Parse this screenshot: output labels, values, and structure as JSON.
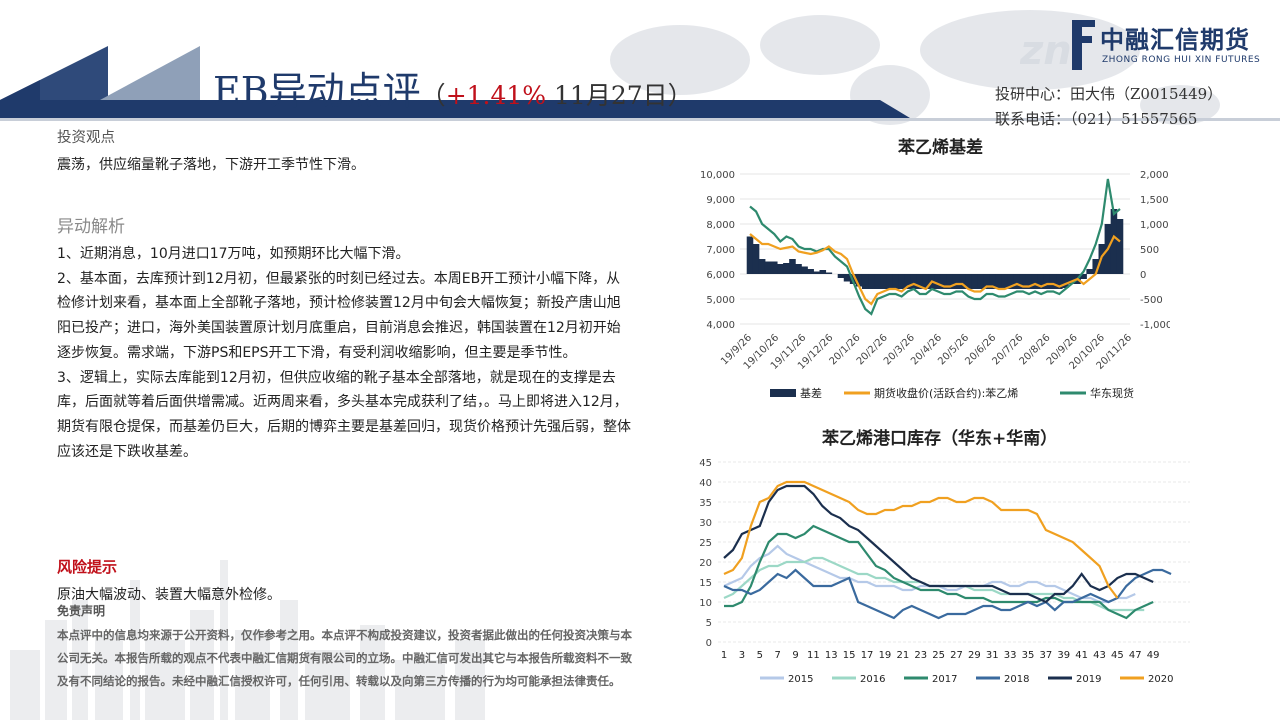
{
  "header": {
    "title": "EB异动点评",
    "subtitle_open": "（",
    "subtitle_pct": "+1.41%",
    "subtitle_date": " 11月27日）",
    "logo_cn": "中融汇信期货",
    "logo_en": "ZHONG RONG HUI XIN FUTURES",
    "contact_line1": "投研中心：田大伟（Z0015449）",
    "contact_line2": "联系电话：（021）51557565"
  },
  "view": {
    "heading": "投资观点",
    "text": "震荡，供应缩量靴子落地，下游开工季节性下滑。"
  },
  "analysis": {
    "heading": "异动解析",
    "p1": "1、近期消息，10月进口17万吨，如预期环比大幅下滑。",
    "p2": "2、基本面，去库预计到12月初，但最紧张的时刻已经过去。本周EB开工预计小幅下降，从检修计划来看，基本面上全部靴子落地，预计检修装置12月中旬会大幅恢复；新投产唐山旭阳已投产；进口，海外美国装置原计划月底重启，目前消息会推迟，韩国装置在12月初开始逐步恢复。需求端，下游PS和EPS开工下滑，有受利润收缩影响，但主要是季节性。",
    "p3": "3、逻辑上，实际去库能到12月初，但供应收缩的靴子基本全部落地，就是现在的支撑是去库，后面就等着后面供增需减。近两周来看，多头基本完成获利了结，。马上即将进入12月，期货有限仓提保，而基差仍巨大，后期的博弈主要是基差回归，现货价格预计先强后弱，整体应该还是下跌收基差。"
  },
  "risk": {
    "heading": "风险提示",
    "text": "原油大幅波动、装置大幅意外检修。"
  },
  "disclaimer": {
    "heading": "免责声明",
    "text": "本点评中的信息均来源于公开资料，仅作参考之用。本点评不构成投资建议，投资者据此做出的任何投资决策与本公司无关。本报告所载的观点不代表中融汇信期货有限公司的立场。中融汇信可发出其它与本报告所载资料不一致及有不同结论的报告。未经中融汇信授权许可，任何引用、转载以及向第三方传播的行为均可能承担法律责任。"
  },
  "chart_data": [
    {
      "type": "line",
      "title": "苯乙烯基差",
      "x_ticks": [
        "19/9/26",
        "19/10/26",
        "19/11/26",
        "19/12/26",
        "20/1/26",
        "20/2/26",
        "20/3/26",
        "20/4/26",
        "20/5/26",
        "20/6/26",
        "20/7/26",
        "20/8/26",
        "20/9/26",
        "20/10/26",
        "20/11/26"
      ],
      "y_left_ticks": [
        "10,000",
        "9,000",
        "8,000",
        "7,000",
        "6,000",
        "5,000",
        "4,000"
      ],
      "y_left_lim": [
        4000,
        10000
      ],
      "y_right_ticks": [
        "2,000",
        "1,500",
        "1,000",
        "500",
        "0",
        "-500",
        "-1,000"
      ],
      "y_right_lim": [
        -1000,
        2000
      ],
      "legend_position": "bottom",
      "series": [
        {
          "name": "基差",
          "axis": "right",
          "render": "bar",
          "color": "#1b2f4e",
          "values": [
            750,
            600,
            300,
            250,
            250,
            200,
            220,
            300,
            200,
            150,
            100,
            50,
            80,
            30,
            0,
            -80,
            -150,
            -200,
            -250,
            -300,
            -300,
            -300,
            -300,
            -300,
            -300,
            -300,
            -300,
            -300,
            -300,
            -300,
            -300,
            -300,
            -300,
            -300,
            -300,
            -300,
            -300,
            -300,
            -300,
            -300,
            -300,
            -300,
            -300,
            -300,
            -300,
            -300,
            -300,
            -300,
            -300,
            -300,
            -300,
            -300,
            -280,
            -200,
            -200,
            -100,
            100,
            300,
            600,
            1000,
            1300,
            1100
          ]
        },
        {
          "name": "期货收盘价(活跃合约):苯乙烯",
          "axis": "left",
          "color": "#f0a020",
          "values": [
            7600,
            7400,
            7200,
            7200,
            7100,
            7000,
            7050,
            7100,
            6900,
            6850,
            6800,
            6850,
            6950,
            7100,
            6900,
            6800,
            6600,
            6000,
            5500,
            5000,
            4800,
            5200,
            5300,
            5400,
            5400,
            5300,
            5500,
            5600,
            5500,
            5400,
            5700,
            5600,
            5500,
            5500,
            5600,
            5600,
            5400,
            5300,
            5300,
            5500,
            5500,
            5400,
            5400,
            5500,
            5600,
            5500,
            5500,
            5600,
            5500,
            5600,
            5600,
            5500,
            5600,
            5700,
            5800,
            5600,
            5800,
            6000,
            6700,
            7000,
            7500,
            7300
          ]
        },
        {
          "name": "华东现货",
          "axis": "left",
          "color": "#2e8a6e",
          "values": [
            8700,
            8500,
            8000,
            7800,
            7600,
            7300,
            7500,
            7400,
            7100,
            7000,
            7000,
            6900,
            7000,
            7000,
            6700,
            6500,
            6300,
            5700,
            5100,
            4600,
            4400,
            5000,
            5100,
            5200,
            5200,
            5100,
            5300,
            5400,
            5200,
            5200,
            5400,
            5300,
            5200,
            5200,
            5300,
            5300,
            5100,
            5000,
            5000,
            5200,
            5200,
            5100,
            5100,
            5200,
            5300,
            5300,
            5200,
            5300,
            5200,
            5300,
            5300,
            5200,
            5400,
            5600,
            5800,
            6100,
            6600,
            7200,
            8000,
            9800,
            8400,
            8600
          ]
        }
      ]
    },
    {
      "type": "line",
      "title": "苯乙烯港口库存（华东+华南）",
      "x_ticks": [
        "1",
        "3",
        "5",
        "7",
        "9",
        "11",
        "13",
        "15",
        "17",
        "19",
        "21",
        "23",
        "25",
        "27",
        "29",
        "31",
        "33",
        "35",
        "37",
        "39",
        "41",
        "43",
        "45",
        "47",
        "49"
      ],
      "y_ticks": [
        "45",
        "40",
        "35",
        "30",
        "25",
        "20",
        "15",
        "10",
        "5",
        "0"
      ],
      "ylim": [
        0,
        45
      ],
      "legend_position": "bottom",
      "series": [
        {
          "name": "2015",
          "color": "#b5c9e8",
          "values": [
            14,
            15,
            16,
            19,
            21,
            22,
            24,
            22,
            21,
            20,
            19,
            18,
            17,
            16,
            16,
            15,
            15,
            14,
            14,
            14,
            13,
            13,
            14,
            14,
            14,
            13,
            13,
            14,
            14,
            14,
            15,
            15,
            14,
            14,
            15,
            15,
            14,
            14,
            13,
            12,
            11,
            11,
            10,
            10,
            11,
            11,
            12
          ]
        },
        {
          "name": "2016",
          "color": "#9cd8c6",
          "values": [
            11,
            12,
            14,
            16,
            18,
            19,
            19,
            20,
            20,
            20,
            21,
            21,
            20,
            19,
            18,
            17,
            17,
            16,
            16,
            15,
            15,
            15,
            15,
            14,
            14,
            14,
            14,
            14,
            13,
            13,
            13,
            12,
            12,
            12,
            12,
            12,
            12,
            12,
            11,
            11,
            10,
            10,
            9,
            8,
            8,
            8,
            8,
            8
          ]
        },
        {
          "name": "2017",
          "color": "#2e8a6e",
          "values": [
            9,
            9,
            10,
            14,
            20,
            25,
            27,
            27,
            26,
            27,
            29,
            28,
            27,
            26,
            25,
            25,
            22,
            19,
            18,
            16,
            15,
            14,
            13,
            13,
            13,
            12,
            12,
            11,
            11,
            11,
            10,
            10,
            10,
            10,
            10,
            10,
            11,
            11,
            10,
            10,
            10,
            10,
            10,
            8,
            7,
            6,
            8,
            9,
            10
          ]
        },
        {
          "name": "2018",
          "color": "#3a6a9e",
          "values": [
            14,
            13,
            13,
            12,
            13,
            15,
            17,
            16,
            18,
            16,
            14,
            14,
            14,
            15,
            16,
            10,
            9,
            8,
            7,
            6,
            8,
            9,
            8,
            7,
            6,
            7,
            7,
            7,
            8,
            9,
            9,
            8,
            8,
            9,
            10,
            9,
            10,
            8,
            10,
            10,
            11,
            12,
            11,
            10,
            11,
            14,
            16,
            17,
            18,
            18,
            17
          ]
        },
        {
          "name": "2019",
          "color": "#1b2f4e",
          "values": [
            21,
            23,
            27,
            28,
            29,
            35,
            38,
            39,
            39,
            39,
            37,
            34,
            32,
            31,
            29,
            28,
            26,
            24,
            22,
            20,
            18,
            16,
            15,
            14,
            14,
            14,
            14,
            14,
            14,
            14,
            14,
            13,
            12,
            12,
            12,
            11,
            10,
            12,
            12,
            14,
            17,
            14,
            13,
            14,
            16,
            17,
            17,
            16,
            15
          ]
        },
        {
          "name": "2020",
          "color": "#f0a020",
          "values": [
            17,
            18,
            21,
            29,
            35,
            36,
            39,
            40,
            40,
            40,
            39,
            38,
            37,
            36,
            35,
            33,
            32,
            32,
            33,
            33,
            34,
            34,
            35,
            35,
            36,
            36,
            35,
            35,
            36,
            36,
            35,
            33,
            33,
            33,
            33,
            32,
            28,
            27,
            26,
            25,
            23,
            21,
            19,
            14,
            11
          ]
        }
      ]
    }
  ]
}
